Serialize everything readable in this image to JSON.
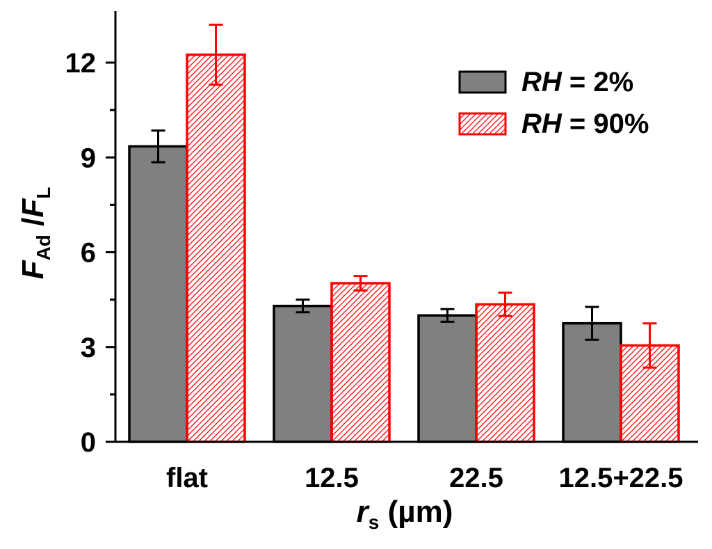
{
  "chart_data": {
    "type": "bar",
    "categories": [
      "flat",
      "12.5",
      "22.5",
      "12.5+22.5"
    ],
    "series": [
      {
        "name": "RH = 2%",
        "name_italic": "RH",
        "name_rest": " = 2%",
        "values": [
          9.35,
          4.3,
          4.0,
          3.75
        ],
        "errors": [
          0.5,
          0.2,
          0.2,
          0.52
        ],
        "fill": "#808080",
        "stroke": "#000000",
        "pattern": "solid"
      },
      {
        "name": "RH = 90%",
        "name_italic": "RH",
        "name_rest": " = 90%",
        "values": [
          12.25,
          5.02,
          4.35,
          3.05
        ],
        "errors": [
          0.95,
          0.23,
          0.37,
          0.7
        ],
        "fill": "#ffffff",
        "stroke": "#ff0000",
        "pattern": "hatch"
      }
    ],
    "yticks": [
      0,
      3,
      6,
      9,
      12
    ],
    "ylim": [
      0,
      13.5
    ],
    "xlabel": {
      "main": "r",
      "sub": "s",
      "rest": " (µm)"
    },
    "ylabel": {
      "main1": "F",
      "sub1": "Ad",
      "mid": " /",
      "main2": "F",
      "sub2": "L"
    },
    "legend_position": "top-right",
    "grid": false
  }
}
